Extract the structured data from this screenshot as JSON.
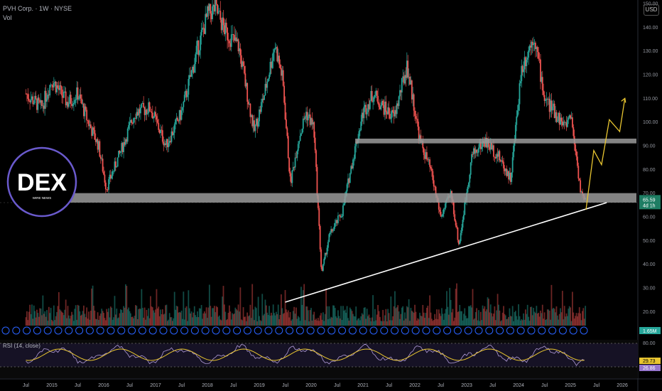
{
  "header": {
    "symbol_line": "PVH Corp. · 1W · NYSE",
    "volume_label": "Vol",
    "currency": "USD"
  },
  "rsi": {
    "label": "RSI (14, close)",
    "scale": [
      "80.00",
      "20.00"
    ],
    "value_1": "29.73",
    "value_2": "26.86"
  },
  "logo": {
    "text": "DEX",
    "subtext": "WIRE NEWS"
  },
  "price_tags": {
    "last": "65.59",
    "countdown": "4d 1h",
    "volume": "1.65M"
  },
  "colors": {
    "up": "#26a69a",
    "down": "#ef5350",
    "zone": "#9a9a9a",
    "trendline": "#ffffff",
    "projection": "#e8c530",
    "rsi_line": "#b39ddb",
    "rsi_ma": "#e8c530"
  },
  "chart_data": {
    "type": "line",
    "title": "PVH Corp. · 1W · NYSE",
    "xlabel": "",
    "ylabel": "",
    "ylim": [
      15,
      150
    ],
    "y_ticks": [
      20,
      30,
      40,
      50,
      60,
      70,
      80,
      90,
      100,
      110,
      120,
      130,
      140,
      150
    ],
    "x_ticks": [
      "Jul",
      "2015",
      "Jul",
      "2016",
      "Jul",
      "2017",
      "Jul",
      "2018",
      "Jul",
      "2019",
      "Jul",
      "2020",
      "Jul",
      "2021",
      "Jul",
      "2022",
      "Jul",
      "2023",
      "Jul",
      "2024",
      "Jul",
      "2025",
      "Jul",
      "2026"
    ],
    "series": [
      {
        "x": [
          2014.5,
          2014.8,
          2015.0,
          2015.3,
          2015.5,
          2015.7,
          2015.9,
          2016.05,
          2016.3,
          2016.6,
          2016.9,
          2017.2,
          2017.5,
          2017.8,
          2018.0,
          2018.15,
          2018.35,
          2018.6,
          2018.9,
          2019.1,
          2019.3,
          2019.45,
          2019.6,
          2019.75,
          2019.9,
          2020.05,
          2020.2,
          2020.35,
          2020.6,
          2020.8,
          2021.0,
          2021.2,
          2021.4,
          2021.6,
          2021.85,
          2022.1,
          2022.3,
          2022.5,
          2022.7,
          2022.85,
          2023.1,
          2023.35,
          2023.6,
          2023.85,
          2024.05,
          2024.3,
          2024.5,
          2024.7,
          2024.9,
          2025.0,
          2025.1,
          2025.2,
          2025.3
        ],
        "values": [
          112,
          106,
          118,
          108,
          112,
          100,
          90,
          72,
          86,
          104,
          106,
          90,
          104,
          130,
          145,
          148,
          138,
          132,
          96,
          112,
          133,
          118,
          74,
          92,
          104,
          98,
          36,
          52,
          62,
          84,
          104,
          112,
          106,
          102,
          124,
          92,
          80,
          60,
          70,
          48,
          86,
          92,
          86,
          76,
          122,
          137,
          110,
          104,
          98,
          104,
          88,
          70,
          65.59
        ]
      }
    ],
    "support_zones": [
      [
        66,
        70
      ],
      [
        91,
        93
      ]
    ],
    "trendline": {
      "from": [
        2019.5,
        24
      ],
      "to": [
        2025.7,
        66
      ]
    },
    "projection": {
      "x": [
        2025.3,
        2025.45,
        2025.6,
        2025.75,
        2025.95,
        2026.05
      ],
      "values": [
        63,
        88,
        82,
        101,
        96,
        110
      ]
    }
  }
}
